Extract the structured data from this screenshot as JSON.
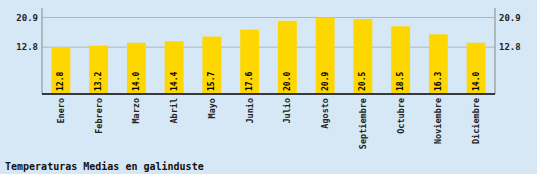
{
  "chart_data": {
    "type": "bar",
    "title": "Temperaturas Medias en galinduste",
    "categories": [
      "Enero",
      "Febrero",
      "Marzo",
      "Abril",
      "Mayo",
      "Junio",
      "Julio",
      "Agosto",
      "Septiembre",
      "Octubre",
      "Noviembre",
      "Diciembre"
    ],
    "values": [
      12.8,
      13.2,
      14.0,
      14.4,
      15.7,
      17.6,
      20.0,
      20.9,
      20.5,
      18.5,
      16.3,
      14.0
    ],
    "value_labels": [
      "12.8",
      "13.2",
      "14.0",
      "14.4",
      "15.7",
      "17.6",
      "20.0",
      "20.9",
      "20.5",
      "18.5",
      "16.3",
      "14.0"
    ],
    "data_labels": true,
    "color": "#FFD700",
    "ylim": [
      0.0,
      23.5
    ],
    "yticks": [
      12.8,
      20.9
    ],
    "y2lim": [
      0.0,
      23.5
    ],
    "y2ticks": [
      12.8,
      20.9
    ],
    "grid": true
  }
}
